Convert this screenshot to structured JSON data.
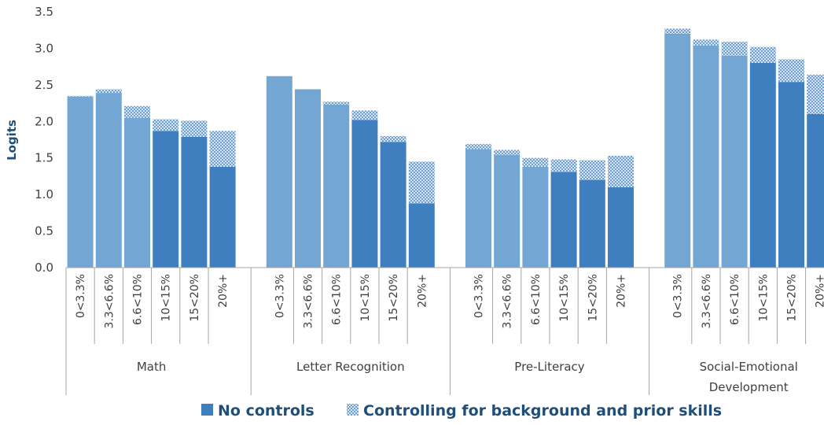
{
  "chart_data": {
    "type": "bar",
    "stacked": true,
    "ylabel": "Logits",
    "ylim": [
      0,
      3.5
    ],
    "yticks": [
      "0.0",
      "0.5",
      "1.0",
      "1.5",
      "2.0",
      "2.5",
      "3.0",
      "3.5"
    ],
    "grid": false,
    "legend_position": "bottom",
    "categories": [
      "0<3.3%",
      "3.3<6.6%",
      "6.6<10%",
      "10<15%",
      "15<20%",
      "20%+"
    ],
    "groups": [
      {
        "name": "Math",
        "no_controls": [
          2.34,
          2.39,
          2.05,
          1.87,
          1.79,
          1.38
        ],
        "controlling": [
          2.35,
          2.44,
          2.21,
          2.03,
          2.01,
          1.87
        ]
      },
      {
        "name": "Letter Recognition",
        "no_controls": [
          2.62,
          2.44,
          2.23,
          2.02,
          1.72,
          0.88
        ],
        "controlling": [
          2.62,
          2.44,
          2.27,
          2.15,
          1.8,
          1.45
        ]
      },
      {
        "name": "Pre-Literacy",
        "no_controls": [
          1.62,
          1.54,
          1.38,
          1.31,
          1.2,
          1.1
        ],
        "controlling": [
          1.69,
          1.61,
          1.5,
          1.48,
          1.47,
          1.53
        ]
      },
      {
        "name": "Social-Emotional Development",
        "no_controls": [
          3.2,
          3.04,
          2.9,
          2.8,
          2.54,
          2.1
        ],
        "controlling": [
          3.27,
          3.12,
          3.09,
          3.02,
          2.85,
          2.64
        ]
      }
    ],
    "series": [
      {
        "name": "No controls",
        "color": "#3f7fbf"
      },
      {
        "name": "Controlling for background and prior skills",
        "color": "#9ebedf"
      }
    ],
    "light_bar_color": "#74a6d4"
  }
}
